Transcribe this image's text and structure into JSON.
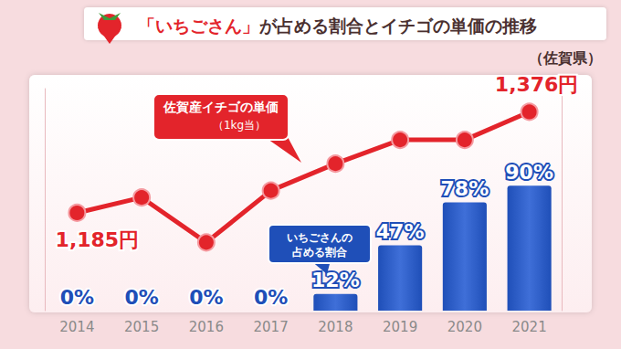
{
  "chart_data": {
    "type": "bar",
    "title": "「いちごさん」が占める割合とイチゴの単価の推移",
    "subtitle": "（佐賀県）",
    "categories": [
      "2014",
      "2015",
      "2016",
      "2017",
      "2018",
      "2019",
      "2020",
      "2021"
    ],
    "series": [
      {
        "name": "いちごさんの\n占める割合",
        "type": "bar",
        "color": "#1f4fb8",
        "values": [
          0,
          0,
          0,
          0,
          12,
          47,
          78,
          90
        ],
        "value_labels": [
          "0%",
          "0%",
          "0%",
          "0%",
          "12%",
          "47%",
          "78%",
          "90%"
        ]
      },
      {
        "name": "佐賀産イチゴの単価",
        "note": "（1kg当）",
        "type": "line",
        "axis": "y2",
        "color": "#e3242b",
        "marker": "circle",
        "values": [
          1185,
          1214,
          1129,
          1227,
          1278,
          1323,
          1323,
          1376
        ],
        "value_labels": [
          "1,185円",
          null,
          null,
          null,
          null,
          null,
          null,
          "1,376円"
        ]
      }
    ],
    "ylim": [
      0,
      160
    ],
    "y2lim": [
      1000,
      1420
    ],
    "data_labels": true,
    "tick_labels": "x",
    "grid": false
  }
}
